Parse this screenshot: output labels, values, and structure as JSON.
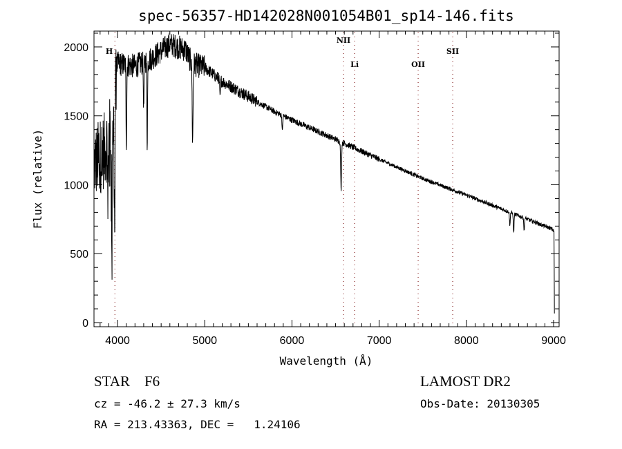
{
  "chart_data": {
    "type": "line",
    "title": "spec-56357-HD142028N001054B01_sp14-146.fits",
    "xlabel": "Wavelength (Å)",
    "ylabel": "Flux (relative)",
    "xlim": [
      3730,
      9063
    ],
    "ylim": [
      -30,
      2115
    ],
    "grid": false,
    "x_ticks": [
      4000,
      5000,
      6000,
      7000,
      8000,
      9000
    ],
    "y_ticks": [
      0,
      500,
      1000,
      1500,
      2000
    ],
    "continuum": [
      [
        3730,
        1150
      ],
      [
        3850,
        1250
      ],
      [
        3960,
        1450
      ],
      [
        3990,
        1880
      ],
      [
        4200,
        1860
      ],
      [
        4400,
        1920
      ],
      [
        4600,
        2020
      ],
      [
        4780,
        1980
      ],
      [
        4850,
        1880
      ],
      [
        5000,
        1850
      ],
      [
        5200,
        1750
      ],
      [
        5500,
        1640
      ],
      [
        5800,
        1530
      ],
      [
        6000,
        1470
      ],
      [
        6500,
        1330
      ],
      [
        7000,
        1185
      ],
      [
        7500,
        1045
      ],
      [
        8000,
        925
      ],
      [
        8500,
        800
      ],
      [
        8980,
        680
      ],
      [
        9005,
        660
      ],
      [
        9010,
        0
      ]
    ],
    "absorption_lines": [
      {
        "wavelength": 3889,
        "min_flux": 750
      },
      {
        "wavelength": 3934,
        "min_flux": 500
      },
      {
        "wavelength": 3968,
        "min_flux": 490
      },
      {
        "wavelength": 4101,
        "min_flux": 1310
      },
      {
        "wavelength": 4300,
        "min_flux": 1560
      },
      {
        "wavelength": 4340,
        "min_flux": 1310
      },
      {
        "wavelength": 4861,
        "min_flux": 1320
      },
      {
        "wavelength": 5175,
        "min_flux": 1620
      },
      {
        "wavelength": 5890,
        "min_flux": 1380
      },
      {
        "wavelength": 6563,
        "min_flux": 960
      },
      {
        "wavelength": 8498,
        "min_flux": 700
      },
      {
        "wavelength": 8542,
        "min_flux": 650
      },
      {
        "wavelength": 8662,
        "min_flux": 660
      }
    ],
    "line_markers": [
      {
        "label": "H",
        "wavelength": 3970
      },
      {
        "label": "NII",
        "wavelength": 6591
      },
      {
        "label": "Li",
        "wavelength": 6718
      },
      {
        "label": "OII",
        "wavelength": 7447
      },
      {
        "label": "SII",
        "wavelength": 7843
      }
    ],
    "colors": {
      "spectrum": "#000000",
      "marker": "#8b2a2a"
    }
  },
  "info": {
    "class": "STAR    F6",
    "survey": "LAMOST DR2",
    "cz": "cz = -46.2 ± 27.3 km/s",
    "obs_date": "Obs-Date: 20130305",
    "radec": "RA = 213.43363, DEC =   1.24106"
  }
}
